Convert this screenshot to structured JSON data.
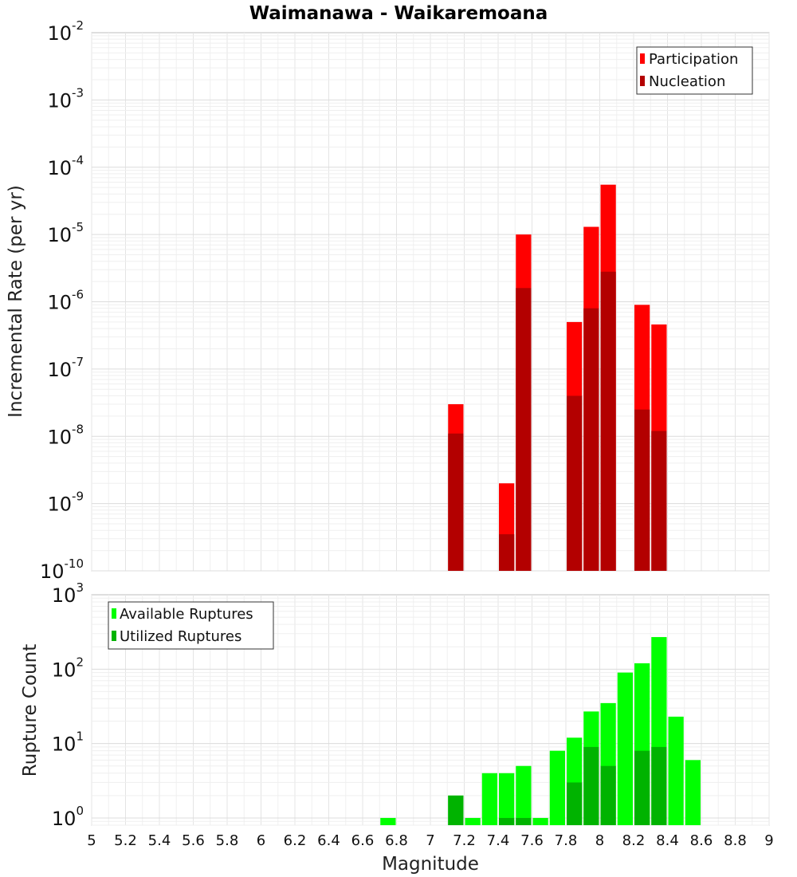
{
  "chart_data": [
    {
      "type": "bar",
      "title": "Waimanawa - Waikaremoana",
      "xlabel": "",
      "ylabel": "Incremental Rate (per yr)",
      "yscale": "log",
      "ylim": [
        1e-10,
        0.01
      ],
      "xlim": [
        5,
        9
      ],
      "bin_width": 0.1,
      "grid": true,
      "legend_position": "top-right",
      "series": [
        {
          "name": "Participation",
          "color": "#ff0000",
          "x": [
            7.15,
            7.45,
            7.55,
            7.85,
            7.95,
            8.05,
            8.25,
            8.35
          ],
          "values": [
            3e-08,
            2e-09,
            1e-05,
            5e-07,
            1.3e-05,
            5.5e-05,
            9e-07,
            4.6e-07
          ]
        },
        {
          "name": "Nucleation",
          "color": "#b30000",
          "x": [
            7.15,
            7.45,
            7.55,
            7.85,
            7.95,
            8.05,
            8.25,
            8.35
          ],
          "values": [
            1.1e-08,
            3.5e-10,
            1.6e-06,
            4e-08,
            8e-07,
            2.8e-06,
            2.5e-08,
            1.2e-08
          ]
        }
      ]
    },
    {
      "type": "bar",
      "title": "",
      "xlabel": "Magnitude",
      "ylabel": "Rupture Count",
      "yscale": "log",
      "ylim": [
        0.8,
        1000
      ],
      "xlim": [
        5,
        9
      ],
      "bin_width": 0.1,
      "grid": true,
      "legend_position": "top-left",
      "x_ticks": [
        "5",
        "5.2",
        "5.4",
        "5.6",
        "5.8",
        "6",
        "6.2",
        "6.4",
        "6.6",
        "6.8",
        "7",
        "7.2",
        "7.4",
        "7.6",
        "7.8",
        "8",
        "8.2",
        "8.4",
        "8.6",
        "8.8",
        "9"
      ],
      "series": [
        {
          "name": "Available Ruptures",
          "color": "#00ff00",
          "x": [
            6.75,
            7.15,
            7.25,
            7.35,
            7.45,
            7.55,
            7.65,
            7.75,
            7.85,
            7.95,
            8.05,
            8.15,
            8.25,
            8.35,
            8.45,
            8.55
          ],
          "values": [
            1,
            2,
            1,
            4,
            4,
            5,
            1,
            8,
            12,
            27,
            35,
            90,
            120,
            270,
            23,
            6
          ]
        },
        {
          "name": "Utilized Ruptures",
          "color": "#00b300",
          "x": [
            7.15,
            7.45,
            7.55,
            7.85,
            7.95,
            8.05,
            8.25,
            8.35
          ],
          "values": [
            2,
            1,
            1,
            3,
            9,
            5,
            8,
            9
          ]
        }
      ]
    }
  ]
}
